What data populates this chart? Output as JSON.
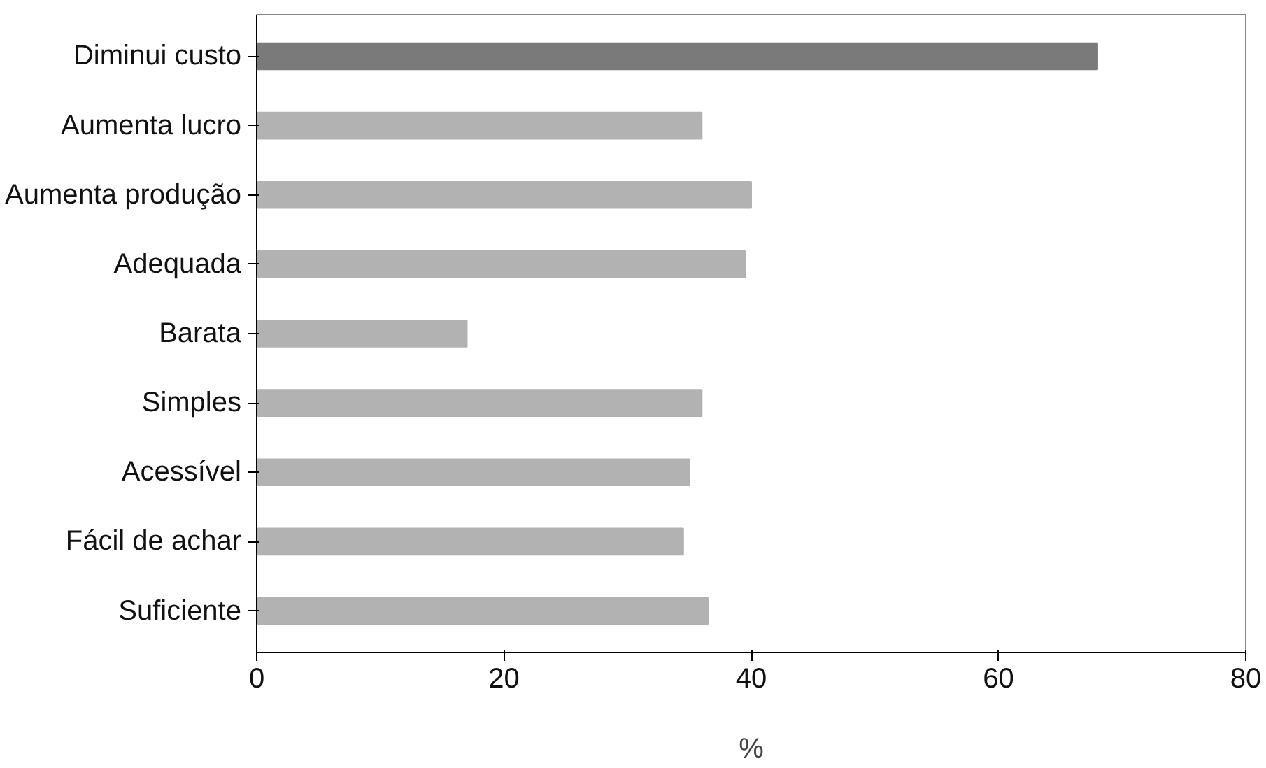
{
  "chart_data": {
    "type": "bar",
    "orientation": "horizontal",
    "xlabel": "%",
    "categories": [
      "Diminui custo",
      "Aumenta lucro",
      "Aumenta produção",
      "Adequada",
      "Barata",
      "Simples",
      "Acessível",
      "Fácil de achar",
      "Suficiente"
    ],
    "values": [
      68,
      36,
      40,
      39.5,
      17,
      36,
      35,
      34.5,
      36.5
    ],
    "colors": [
      "#7a7a7a",
      "#b2b2b2",
      "#b2b2b2",
      "#b2b2b2",
      "#b2b2b2",
      "#b2b2b2",
      "#b2b2b2",
      "#b2b2b2",
      "#b2b2b2"
    ],
    "xlim": [
      0,
      80
    ],
    "xticks": [
      0,
      20,
      40,
      60,
      80
    ],
    "grid": false
  }
}
